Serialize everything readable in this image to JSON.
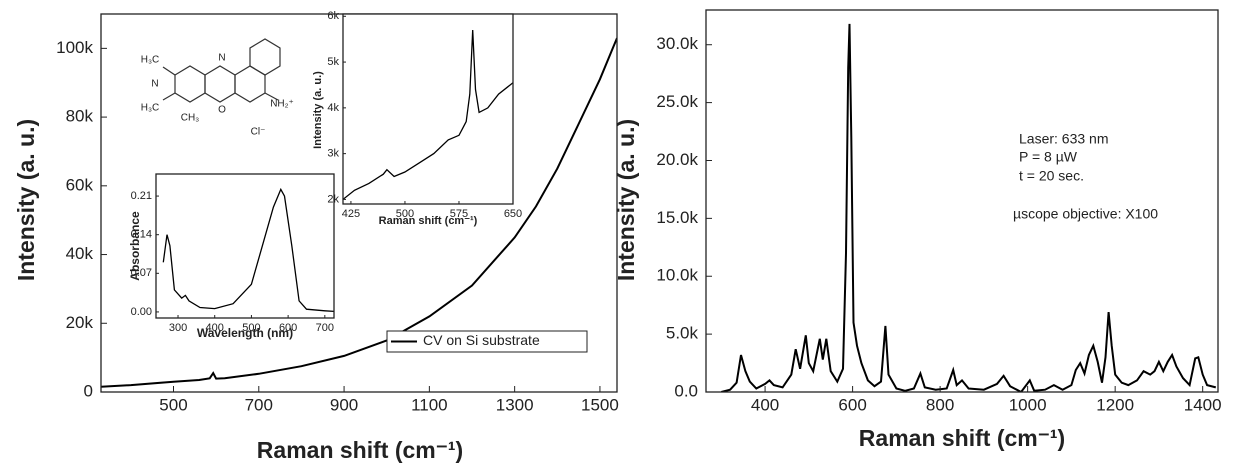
{
  "chart_data": [
    {
      "type": "line",
      "x_label": "Raman shift (cm⁻¹)",
      "y_label": "Intensity (a. u.)",
      "xlim": [
        330,
        1540
      ],
      "ylim": [
        0,
        110000
      ],
      "xticks": [
        500,
        700,
        900,
        1100,
        1300,
        1500
      ],
      "yticks": [
        0,
        {
          "value": 20000,
          "label": "20k"
        },
        {
          "value": 40000,
          "label": "40k"
        },
        {
          "value": 60000,
          "label": "60k"
        },
        {
          "value": 80000,
          "label": "80k"
        },
        {
          "value": 100000,
          "label": "100k"
        }
      ],
      "legend": "lower right",
      "series": [
        {
          "name": "CV on Si substrate",
          "color": "#000000",
          "x": [
            330,
            400,
            500,
            560,
            585,
            593,
            600,
            620,
            700,
            800,
            900,
            1000,
            1100,
            1200,
            1300,
            1350,
            1400,
            1450,
            1500,
            1530,
            1540
          ],
          "values": [
            1500,
            2000,
            3000,
            3500,
            4000,
            5500,
            3900,
            4000,
            5300,
            7500,
            10500,
            15000,
            22000,
            31000,
            45000,
            54000,
            65000,
            78000,
            91000,
            100000,
            103000
          ]
        }
      ]
    },
    {
      "type": "line",
      "x_label": "Raman shift (cm⁻¹)",
      "y_label": "Intensity (a. u.)",
      "xlim": [
        414,
        650
      ],
      "ylim": [
        1900,
        6050
      ],
      "xticks": [
        425,
        500,
        575,
        650
      ],
      "yticks": [
        {
          "value": 2000,
          "label": "2k"
        },
        {
          "value": 3000,
          "label": "3k"
        },
        {
          "value": 4000,
          "label": "4k"
        },
        {
          "value": 5000,
          "label": "5k"
        },
        {
          "value": 6000,
          "label": "6k"
        }
      ],
      "series": [
        {
          "color": "#000000",
          "x": [
            414,
            430,
            450,
            470,
            475,
            485,
            500,
            520,
            540,
            560,
            575,
            585,
            590,
            594,
            598,
            603,
            615,
            630,
            650
          ],
          "values": [
            2000,
            2200,
            2350,
            2550,
            2650,
            2500,
            2600,
            2800,
            3000,
            3300,
            3400,
            3700,
            4300,
            5700,
            4400,
            3900,
            4000,
            4300,
            4550
          ]
        }
      ]
    },
    {
      "type": "line",
      "x_label": "Wavelength (nm)",
      "y_label": "Absorbance",
      "xlim": [
        240,
        725
      ],
      "ylim": [
        -0.011,
        0.25
      ],
      "xticks": [
        300,
        400,
        500,
        600,
        700
      ],
      "yticks": [
        {
          "value": 0,
          "label": "0.00"
        },
        0.07,
        0.14,
        0.21
      ],
      "series": [
        {
          "color": "#000000",
          "x": [
            260,
            270,
            278,
            290,
            310,
            320,
            330,
            360,
            400,
            450,
            500,
            530,
            560,
            580,
            590,
            610,
            630,
            650,
            700,
            725
          ],
          "values": [
            0.09,
            0.14,
            0.12,
            0.04,
            0.025,
            0.03,
            0.02,
            0.008,
            0.006,
            0.015,
            0.05,
            0.12,
            0.19,
            0.222,
            0.21,
            0.12,
            0.02,
            0.005,
            0.002,
            0.001
          ]
        }
      ]
    },
    {
      "type": "line",
      "x_label": "Raman shift (cm⁻¹)",
      "y_label": "Intensity (a. u.)",
      "xlim": [
        265,
        1435
      ],
      "ylim": [
        0,
        33000
      ],
      "xticks": [
        400,
        600,
        800,
        1000,
        1200,
        1400
      ],
      "yticks": [
        {
          "value": 0,
          "label": "0.0"
        },
        {
          "value": 5000,
          "label": "5.0k"
        },
        {
          "value": 10000,
          "label": "10.0k"
        },
        {
          "value": 15000,
          "label": "15.0k"
        },
        {
          "value": 20000,
          "label": "20.0k"
        },
        {
          "value": 25000,
          "label": "25.0k"
        },
        {
          "value": 30000,
          "label": "30.0k"
        }
      ],
      "annotations": [
        "Laser: 633 nm",
        "P = 8 µW",
        "t = 20 sec.",
        "µscope objective: X100"
      ],
      "series": [
        {
          "color": "#000000",
          "x": [
            300,
            320,
            335,
            345,
            355,
            365,
            380,
            400,
            410,
            420,
            440,
            460,
            470,
            480,
            493,
            500,
            510,
            525,
            532,
            540,
            550,
            565,
            578,
            585,
            590,
            593,
            597,
            602,
            610,
            620,
            635,
            650,
            665,
            675,
            682,
            700,
            720,
            740,
            755,
            765,
            790,
            815,
            830,
            838,
            850,
            865,
            900,
            930,
            945,
            960,
            985,
            1005,
            1015,
            1040,
            1060,
            1080,
            1100,
            1110,
            1120,
            1130,
            1140,
            1150,
            1160,
            1170,
            1178,
            1185,
            1192,
            1200,
            1215,
            1230,
            1250,
            1265,
            1280,
            1290,
            1300,
            1310,
            1320,
            1330,
            1340,
            1355,
            1370,
            1383,
            1390,
            1400,
            1410,
            1430
          ],
          "values": [
            0,
            200,
            800,
            3200,
            1800,
            900,
            300,
            700,
            1000,
            600,
            400,
            1500,
            3700,
            2000,
            4900,
            2500,
            1800,
            4600,
            2800,
            4600,
            1800,
            900,
            2000,
            12000,
            28000,
            31800,
            22000,
            6000,
            4000,
            2500,
            1000,
            500,
            900,
            5700,
            1500,
            300,
            100,
            300,
            1600,
            400,
            200,
            300,
            1900,
            600,
            1000,
            300,
            200,
            700,
            1400,
            500,
            0,
            1000,
            100,
            200,
            600,
            200,
            600,
            1900,
            2500,
            1600,
            3200,
            4000,
            2600,
            800,
            3000,
            6900,
            4000,
            1500,
            800,
            600,
            1000,
            1800,
            1500,
            1800,
            2600,
            1800,
            2600,
            3200,
            2200,
            1200,
            600,
            2900,
            3000,
            1500,
            600,
            400
          ]
        }
      ]
    }
  ],
  "structure_labels": [
    "H₃C",
    "N",
    "H₃C",
    "CH₃",
    "N",
    "O",
    "NH₂⁺",
    "Cl⁻"
  ]
}
